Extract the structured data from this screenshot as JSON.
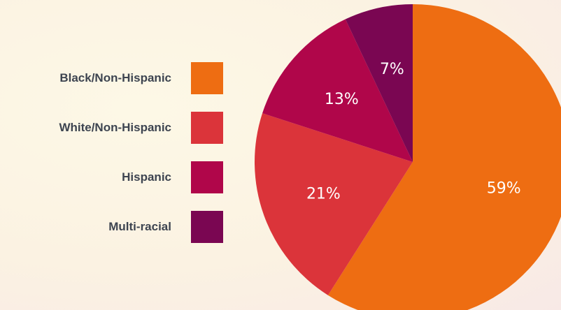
{
  "chart_data": {
    "type": "pie",
    "title": "",
    "categories": [
      "Black/Non-Hispanic",
      "White/Non-Hispanic",
      "Hispanic",
      "Multi-racial"
    ],
    "values": [
      59,
      21,
      13,
      7
    ],
    "labels": [
      "59%",
      "21%",
      "13%",
      "7%"
    ],
    "colors": [
      "#ee6d12",
      "#db343a",
      "#b0064a",
      "#7a0652"
    ],
    "legend_position": "left",
    "start_angle": "12 o'clock",
    "direction": "clockwise"
  }
}
